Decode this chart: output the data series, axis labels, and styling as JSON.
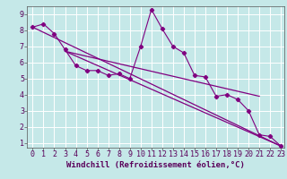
{
  "background_color": "#c5e8e8",
  "line_color": "#800080",
  "grid_color": "#ffffff",
  "xlabel": "Windchill (Refroidissement éolien,°C)",
  "xlabel_fontsize": 6.5,
  "tick_fontsize": 6.0,
  "xlim": [
    -0.5,
    23.3
  ],
  "ylim": [
    0.7,
    9.5
  ],
  "xticks": [
    0,
    1,
    2,
    3,
    4,
    5,
    6,
    7,
    8,
    9,
    10,
    11,
    12,
    13,
    14,
    15,
    16,
    17,
    18,
    19,
    20,
    21,
    22,
    23
  ],
  "yticks": [
    1,
    2,
    3,
    4,
    5,
    6,
    7,
    8,
    9
  ],
  "series1_x": [
    0,
    1,
    2,
    3,
    4,
    5,
    6,
    7,
    8,
    9,
    10,
    11,
    12,
    13,
    14,
    15,
    16,
    17,
    18,
    19,
    20,
    21,
    22,
    23
  ],
  "series1_y": [
    8.2,
    8.4,
    7.8,
    6.8,
    5.8,
    5.5,
    5.5,
    5.2,
    5.3,
    5.0,
    7.0,
    9.3,
    8.1,
    7.0,
    6.6,
    5.2,
    5.1,
    3.9,
    4.0,
    3.7,
    3.0,
    1.5,
    1.4,
    0.8
  ],
  "series2_x": [
    0,
    23
  ],
  "series2_y": [
    8.2,
    0.8
  ],
  "series3_x": [
    3,
    23
  ],
  "series3_y": [
    6.7,
    0.8
  ],
  "series4_x": [
    3,
    21
  ],
  "series4_y": [
    6.7,
    3.9
  ]
}
